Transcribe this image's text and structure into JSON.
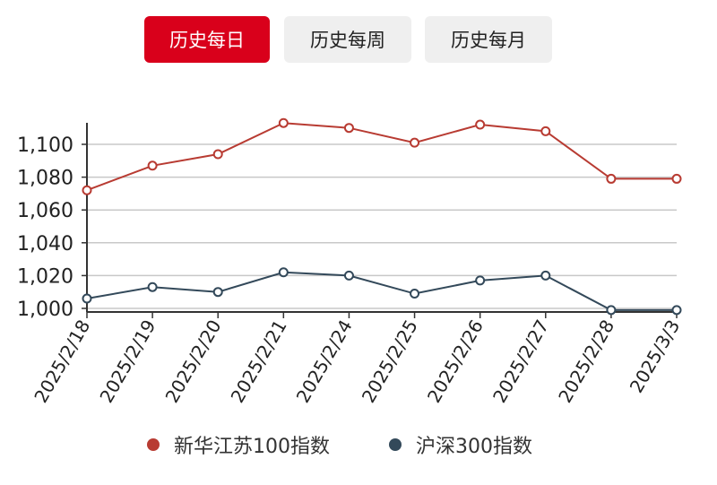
{
  "tabs": [
    {
      "label": "历史每日",
      "active": true
    },
    {
      "label": "历史每周",
      "active": false
    },
    {
      "label": "历史每月",
      "active": false
    }
  ],
  "colors": {
    "active_tab": "#d9001b",
    "series_1": "#b83b32",
    "series_2": "#33495a",
    "grid": "#c8c8c8",
    "axis": "#333333"
  },
  "chart_data": {
    "type": "line",
    "title": "",
    "xlabel": "",
    "ylabel": "",
    "categories": [
      "2025/2/18",
      "2025/2/19",
      "2025/2/20",
      "2025/2/21",
      "2025/2/24",
      "2025/2/25",
      "2025/2/26",
      "2025/2/27",
      "2025/2/28",
      "2025/3/3"
    ],
    "ylim": [
      1000,
      1110
    ],
    "yticks": [
      1000,
      1020,
      1040,
      1060,
      1080,
      1100
    ],
    "ytick_labels": [
      "1,000",
      "1,020",
      "1,040",
      "1,060",
      "1,080",
      "1,100"
    ],
    "grid": true,
    "legend_position": "bottom",
    "series": [
      {
        "name": "新华江苏100指数",
        "values": [
          1072,
          1087,
          1094,
          1113,
          1110,
          1101,
          1112,
          1108,
          1079,
          1079
        ]
      },
      {
        "name": "沪深300指数",
        "values": [
          1006,
          1013,
          1010,
          1022,
          1020,
          1009,
          1017,
          1020,
          999,
          999
        ]
      }
    ]
  }
}
